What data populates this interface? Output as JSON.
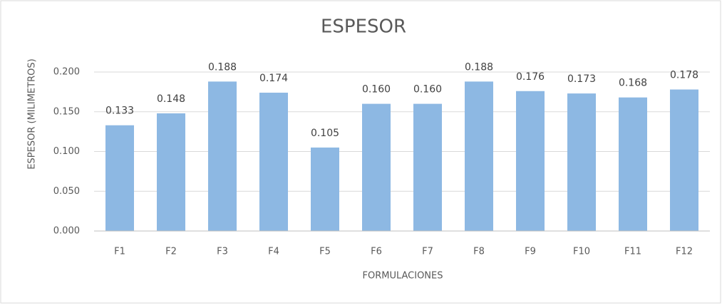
{
  "chart_data": {
    "type": "bar",
    "title": "ESPESOR",
    "x_label": "FORMULACIONES",
    "y_label": "ESPESOR (MILIMETROS)",
    "categories": [
      "F1",
      "F2",
      "F3",
      "F4",
      "F5",
      "F6",
      "F7",
      "F8",
      "F9",
      "F10",
      "F11",
      "F12"
    ],
    "values": [
      0.133,
      0.148,
      0.188,
      0.174,
      0.105,
      0.16,
      0.16,
      0.188,
      0.176,
      0.173,
      0.168,
      0.178
    ],
    "value_labels": [
      "0.133",
      "0.148",
      "0.188",
      "0.174",
      "0.105",
      "0.160",
      "0.160",
      "0.188",
      "0.176",
      "0.173",
      "0.168",
      "0.178"
    ],
    "color": "#8db8e3",
    "ylim": [
      0,
      0.2
    ],
    "yticks": [
      {
        "value": 0,
        "label": "0.000"
      },
      {
        "value": 0.05,
        "label": "0.050"
      },
      {
        "value": 0.1,
        "label": "0.100"
      },
      {
        "value": 0.15,
        "label": "0.150"
      },
      {
        "value": 0.2,
        "label": "0.200"
      }
    ],
    "grid": true
  }
}
